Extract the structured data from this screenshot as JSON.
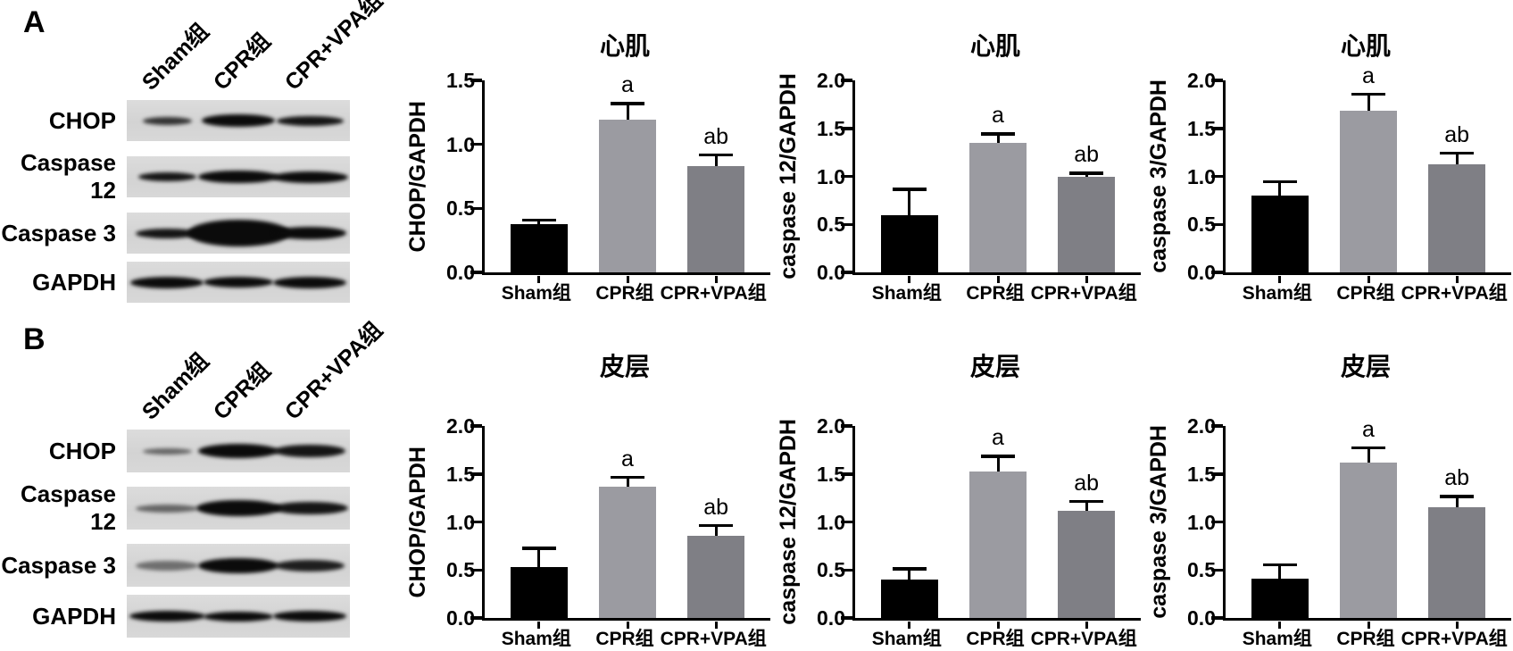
{
  "figure": {
    "background": "#ffffff",
    "panels": [
      {
        "label": "A",
        "region_title": "心肌",
        "blot": {
          "lane_labels": [
            "Sham组",
            "CPR组",
            "CPR+VPA组"
          ],
          "rows": [
            {
              "label": "CHOP",
              "bands": [
                [
                  0.8,
                  22,
                  9
                ],
                [
                  1,
                  33,
                  14
                ],
                [
                  0.95,
                  30,
                  11
                ]
              ]
            },
            {
              "label": "Caspase 12",
              "bands": [
                [
                  0.95,
                  26,
                  10
                ],
                [
                  1,
                  36,
                  14
                ],
                [
                  1,
                  34,
                  13
                ]
              ]
            },
            {
              "label": "Caspase 3",
              "bands": [
                [
                  0.95,
                  28,
                  11
                ],
                [
                  1,
                  46,
                  30
                ],
                [
                  1,
                  33,
                  14
                ]
              ]
            },
            {
              "label": "GAPDH",
              "bands": [
                [
                  1,
                  33,
                  13
                ],
                [
                  1,
                  31,
                  12
                ],
                [
                  1,
                  33,
                  13
                ]
              ]
            }
          ]
        },
        "chart_indexes": [
          0,
          1,
          2
        ]
      },
      {
        "label": "B",
        "region_title": "皮层",
        "blot": {
          "lane_labels": [
            "Sham组",
            "CPR组",
            "CPR+VPA组"
          ],
          "rows": [
            {
              "label": "CHOP",
              "bands": [
                [
                  0.55,
                  22,
                  7
                ],
                [
                  1,
                  36,
                  16
                ],
                [
                  0.95,
                  32,
                  14
                ]
              ]
            },
            {
              "label": "Caspase 12",
              "bands": [
                [
                  0.55,
                  28,
                  9
                ],
                [
                  1,
                  38,
                  18
                ],
                [
                  0.95,
                  34,
                  14
                ]
              ]
            },
            {
              "label": "Caspase 3",
              "bands": [
                [
                  0.5,
                  28,
                  11
                ],
                [
                  1,
                  36,
                  17
                ],
                [
                  0.9,
                  31,
                  13
                ]
              ]
            },
            {
              "label": "GAPDH",
              "bands": [
                [
                  1,
                  34,
                  12
                ],
                [
                  1,
                  31,
                  11
                ],
                [
                  1,
                  33,
                  12
                ]
              ]
            }
          ]
        },
        "chart_indexes": [
          3,
          4,
          5
        ]
      }
    ]
  },
  "chart_data": [
    {
      "type": "bar",
      "title": "心肌",
      "xlabel": "",
      "ylabel": "CHOP/GAPDH",
      "categories": [
        "Sham组",
        "CPR组",
        "CPR+VPA组"
      ],
      "values": [
        0.38,
        1.19,
        0.83
      ],
      "errors": [
        0.04,
        0.14,
        0.1
      ],
      "sig_labels": [
        "",
        "a",
        "ab"
      ],
      "ylim": [
        0,
        1.5
      ],
      "yticks": [
        0.0,
        0.5,
        1.0,
        1.5
      ],
      "grid": false,
      "legend": "none",
      "bar_colors": [
        "#000000",
        "#9b9ba1",
        "#7f7f85"
      ]
    },
    {
      "type": "bar",
      "title": "心肌",
      "xlabel": "",
      "ylabel": "caspase 12/GAPDH",
      "categories": [
        "Sham组",
        "CPR组",
        "CPR+VPA组"
      ],
      "values": [
        0.6,
        1.35,
        1.0
      ],
      "errors": [
        0.28,
        0.11,
        0.05
      ],
      "sig_labels": [
        "",
        "a",
        "ab"
      ],
      "ylim": [
        0,
        2.0
      ],
      "yticks": [
        0.0,
        0.5,
        1.0,
        1.5,
        2.0
      ],
      "grid": false,
      "legend": "none",
      "bar_colors": [
        "#000000",
        "#9b9ba1",
        "#7f7f85"
      ]
    },
    {
      "type": "bar",
      "title": "心肌",
      "xlabel": "",
      "ylabel": "caspase 3/GAPDH",
      "categories": [
        "Sham组",
        "CPR组",
        "CPR+VPA组"
      ],
      "values": [
        0.8,
        1.68,
        1.13
      ],
      "errors": [
        0.16,
        0.19,
        0.13
      ],
      "sig_labels": [
        "",
        "a",
        "ab"
      ],
      "ylim": [
        0,
        2.0
      ],
      "yticks": [
        0.0,
        0.5,
        1.0,
        1.5,
        2.0
      ],
      "grid": false,
      "legend": "none",
      "bar_colors": [
        "#000000",
        "#9b9ba1",
        "#7f7f85"
      ]
    },
    {
      "type": "bar",
      "title": "皮层",
      "xlabel": "",
      "ylabel": "CHOP/GAPDH",
      "categories": [
        "Sham组",
        "CPR组",
        "CPR+VPA组"
      ],
      "values": [
        0.53,
        1.37,
        0.86
      ],
      "errors": [
        0.21,
        0.11,
        0.12
      ],
      "sig_labels": [
        "",
        "a",
        "ab"
      ],
      "ylim": [
        0,
        2.0
      ],
      "yticks": [
        0.0,
        0.5,
        1.0,
        1.5,
        2.0
      ],
      "grid": false,
      "legend": "none",
      "bar_colors": [
        "#000000",
        "#9b9ba1",
        "#7f7f85"
      ]
    },
    {
      "type": "bar",
      "title": "皮层",
      "xlabel": "",
      "ylabel": "caspase 12/GAPDH",
      "categories": [
        "Sham组",
        "CPR组",
        "CPR+VPA组"
      ],
      "values": [
        0.4,
        1.53,
        1.12
      ],
      "errors": [
        0.13,
        0.17,
        0.11
      ],
      "sig_labels": [
        "",
        "a",
        "ab"
      ],
      "ylim": [
        0,
        2.0
      ],
      "yticks": [
        0.0,
        0.5,
        1.0,
        1.5,
        2.0
      ],
      "grid": false,
      "legend": "none",
      "bar_colors": [
        "#000000",
        "#9b9ba1",
        "#7f7f85"
      ]
    },
    {
      "type": "bar",
      "title": "皮层",
      "xlabel": "",
      "ylabel": "caspase 3/GAPDH",
      "categories": [
        "Sham组",
        "CPR组",
        "CPR+VPA组"
      ],
      "values": [
        0.41,
        1.62,
        1.15
      ],
      "errors": [
        0.16,
        0.17,
        0.13
      ],
      "sig_labels": [
        "",
        "a",
        "ab"
      ],
      "ylim": [
        0,
        2.0
      ],
      "yticks": [
        0.0,
        0.5,
        1.0,
        1.5,
        2.0
      ],
      "grid": false,
      "legend": "none",
      "bar_colors": [
        "#000000",
        "#9b9ba1",
        "#7f7f85"
      ]
    }
  ]
}
